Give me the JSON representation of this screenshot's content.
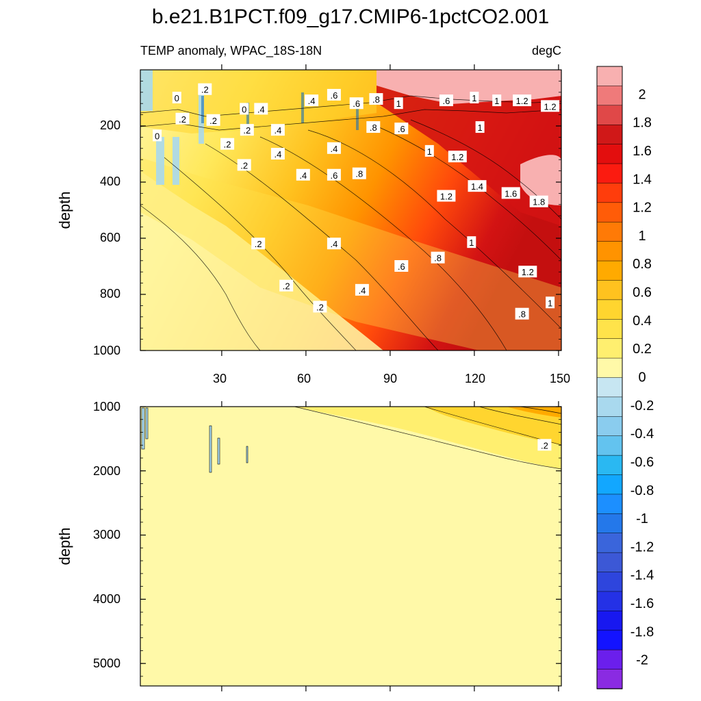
{
  "chart_data": {
    "type": "heatmap",
    "title": "b.e21.B1PCT.f09_g17.CMIP6-1pctCO2.001",
    "subtitle_left": "TEMP anomaly, WPAC_18S-18N",
    "subtitle_right": "degC",
    "units": "degC",
    "xlabel": "",
    "x_tick_labels": [
      "30",
      "60",
      "90",
      "120",
      "150"
    ],
    "x_ticks": [
      30,
      60,
      90,
      120,
      150
    ],
    "xlim": [
      1,
      151
    ],
    "panels": [
      {
        "name": "upper",
        "ylabel": "depth",
        "ylim": [
          0,
          1000
        ],
        "y_ticks": [
          200,
          400,
          600,
          800,
          1000
        ],
        "y_tick_labels": [
          "200",
          "400",
          "600",
          "800",
          "1000"
        ],
        "contour_labels": [
          {
            "text": "0",
            "x": 14,
            "depth": 100
          },
          {
            "text": ".2",
            "x": 24,
            "depth": 70
          },
          {
            "text": ".2",
            "x": 16,
            "depth": 175
          },
          {
            "text": ".2",
            "x": 27,
            "depth": 180
          },
          {
            "text": "0",
            "x": 7,
            "depth": 235
          },
          {
            "text": ".2",
            "x": 32,
            "depth": 265
          },
          {
            "text": "0",
            "x": 38,
            "depth": 140
          },
          {
            "text": ".2",
            "x": 39,
            "depth": 215
          },
          {
            "text": ".4",
            "x": 44,
            "depth": 140
          },
          {
            "text": ".4",
            "x": 50,
            "depth": 215
          },
          {
            "text": ".4",
            "x": 50,
            "depth": 300
          },
          {
            "text": ".2",
            "x": 38,
            "depth": 340
          },
          {
            "text": ".4",
            "x": 62,
            "depth": 110
          },
          {
            "text": ".6",
            "x": 70,
            "depth": 90
          },
          {
            "text": ".6",
            "x": 78,
            "depth": 120
          },
          {
            "text": ".8",
            "x": 85,
            "depth": 105
          },
          {
            "text": "1",
            "x": 93,
            "depth": 120
          },
          {
            "text": ".8",
            "x": 84,
            "depth": 205
          },
          {
            "text": ".6",
            "x": 94,
            "depth": 210
          },
          {
            "text": ".4",
            "x": 70,
            "depth": 280
          },
          {
            "text": ".4",
            "x": 59,
            "depth": 375
          },
          {
            "text": ".6",
            "x": 70,
            "depth": 375
          },
          {
            "text": ".8",
            "x": 79,
            "depth": 370
          },
          {
            "text": "1",
            "x": 104,
            "depth": 290
          },
          {
            "text": "1.2",
            "x": 114,
            "depth": 310
          },
          {
            "text": ".6",
            "x": 110,
            "depth": 110
          },
          {
            "text": "1",
            "x": 120,
            "depth": 100
          },
          {
            "text": "1",
            "x": 128,
            "depth": 110
          },
          {
            "text": "1.2",
            "x": 137,
            "depth": 110
          },
          {
            "text": "1.2",
            "x": 147,
            "depth": 130
          },
          {
            "text": "1",
            "x": 122,
            "depth": 205
          },
          {
            "text": "1.2",
            "x": 110,
            "depth": 450
          },
          {
            "text": "1.4",
            "x": 121,
            "depth": 415
          },
          {
            "text": "1.6",
            "x": 133,
            "depth": 440
          },
          {
            "text": "1.8",
            "x": 143,
            "depth": 470
          },
          {
            "text": ".2",
            "x": 43,
            "depth": 620
          },
          {
            "text": ".4",
            "x": 70,
            "depth": 620
          },
          {
            "text": "1",
            "x": 119,
            "depth": 615
          },
          {
            "text": ".8",
            "x": 107,
            "depth": 670
          },
          {
            "text": ".6",
            "x": 94,
            "depth": 700
          },
          {
            "text": "1.2",
            "x": 139,
            "depth": 720
          },
          {
            "text": ".2",
            "x": 53,
            "depth": 770
          },
          {
            "text": ".4",
            "x": 80,
            "depth": 785
          },
          {
            "text": ".2",
            "x": 65,
            "depth": 845
          },
          {
            "text": "1",
            "x": 147,
            "depth": 830
          },
          {
            "text": ".8",
            "x": 137,
            "depth": 870
          }
        ]
      },
      {
        "name": "lower",
        "ylabel": "depth",
        "ylim": [
          1000,
          5350
        ],
        "y_ticks": [
          1000,
          2000,
          3000,
          4000,
          5000
        ],
        "y_tick_labels": [
          "1000",
          "2000",
          "3000",
          "4000",
          "5000"
        ],
        "contour_labels": [
          {
            "text": ".2",
            "x": 145,
            "depth": 1600
          }
        ]
      }
    ],
    "colorbar": {
      "levels": [
        -2,
        -1.8,
        -1.6,
        -1.4,
        -1.2,
        -1,
        -0.8,
        -0.6,
        -0.4,
        -0.2,
        0,
        0.2,
        0.4,
        0.6,
        0.8,
        1,
        1.2,
        1.4,
        1.6,
        1.8,
        2
      ],
      "labels": [
        "2",
        "1.8",
        "1.6",
        "1.4",
        "1.2",
        "1",
        "0.8",
        "0.6",
        "0.4",
        "0.2",
        "0",
        "-0.2",
        "-0.4",
        "-0.6",
        "-0.8",
        "-1",
        "-1.2",
        "-1.4",
        "-1.6",
        "-1.8",
        "-2"
      ],
      "colors": [
        "#f8b0b0",
        "#ef7a7a",
        "#e04848",
        "#d01818",
        "#e30e0e",
        "#fb1b10",
        "#ff3d0c",
        "#ff5c08",
        "#ff7a06",
        "#ff9300",
        "#ffaa00",
        "#ffc21f",
        "#ffd52f",
        "#ffe34a",
        "#ffef6f",
        "#fff9a8",
        "#c7e6f2",
        "#a9d9ee",
        "#8accee",
        "#63c3ef",
        "#2ab8f2",
        "#12a7ff",
        "#1c8fff",
        "#2478ea",
        "#3a65db",
        "#3c58d6",
        "#2e45dd",
        "#2431e6",
        "#1818f0",
        "#1313ff",
        "#6b1fec",
        "#8a2be2"
      ]
    }
  }
}
